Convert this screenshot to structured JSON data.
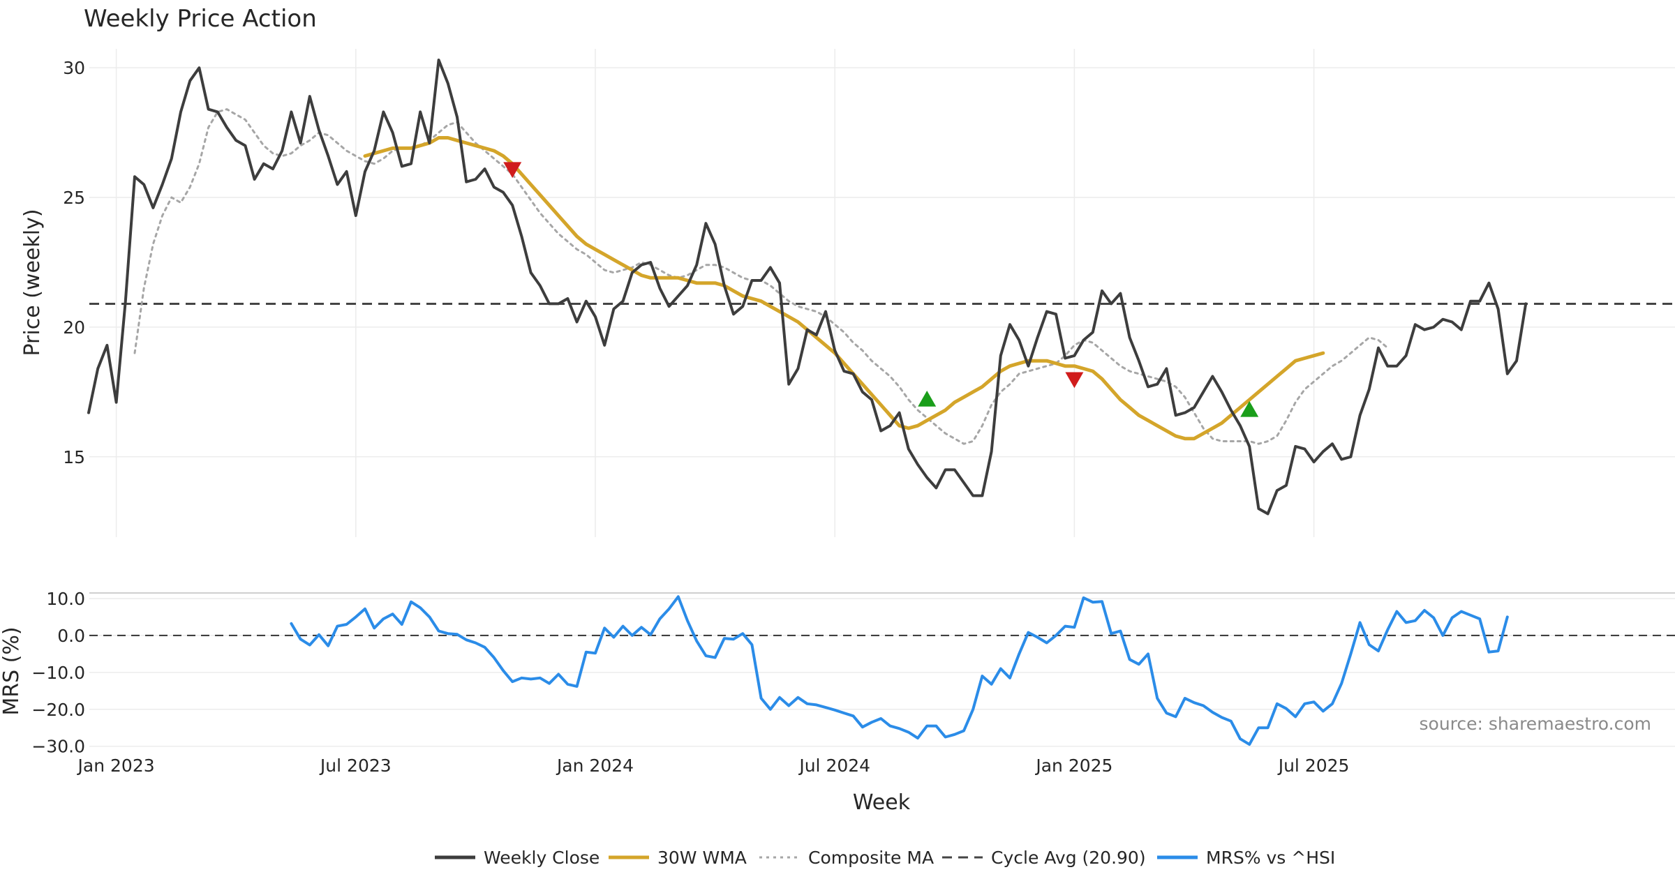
{
  "chart_data": {
    "type": "line",
    "title": "Weekly Price Action",
    "source": "source: sharemaestro.com",
    "xlabel": "Week",
    "x_ticks": [
      "Jan 2023",
      "Jul 2023",
      "Jan 2024",
      "Jul 2024",
      "Jan 2025",
      "Jul 2025"
    ],
    "price_panel": {
      "ylabel": "Price (weekly)",
      "ylim": [
        11.9,
        31.0
      ],
      "y_ticks": [
        "15",
        "20",
        "25",
        "30"
      ],
      "cycle_avg": 20.9,
      "weekly_close": [
        16.7,
        18.4,
        19.3,
        17.1,
        21.0,
        25.8,
        25.5,
        24.6,
        25.5,
        26.5,
        28.3,
        29.5,
        30.0,
        28.4,
        28.3,
        27.7,
        27.2,
        27.0,
        25.7,
        26.3,
        26.1,
        26.8,
        28.3,
        27.1,
        28.9,
        27.6,
        26.6,
        25.5,
        26.0,
        24.3,
        26.0,
        26.8,
        28.3,
        27.5,
        26.2,
        26.3,
        28.3,
        27.1,
        30.3,
        29.4,
        28.1,
        25.6,
        25.7,
        26.1,
        25.4,
        25.2,
        24.7,
        23.5,
        22.1,
        21.6,
        20.9,
        20.9,
        21.1,
        20.2,
        21.0,
        20.4,
        19.3,
        20.7,
        21.0,
        22.1,
        22.4,
        22.5,
        21.5,
        20.8,
        21.2,
        21.6,
        22.4,
        24.0,
        23.2,
        21.6,
        20.5,
        20.8,
        21.8,
        21.8,
        22.3,
        21.7,
        17.8,
        18.4,
        19.9,
        19.7,
        20.6,
        19.1,
        18.3,
        18.2,
        17.5,
        17.2,
        16.0,
        16.2,
        16.7,
        15.3,
        14.7,
        14.2,
        13.8,
        14.5,
        14.5,
        14.0,
        13.5,
        13.5,
        15.2,
        18.9,
        20.1,
        19.5,
        18.5,
        19.6,
        20.6,
        20.5,
        18.8,
        18.9,
        19.5,
        19.8,
        21.4,
        20.9,
        21.3,
        19.6,
        18.7,
        17.7,
        17.8,
        18.4,
        16.6,
        16.7,
        16.9,
        17.5,
        18.1,
        17.5,
        16.8,
        16.2,
        15.4,
        13.0,
        12.8,
        13.7,
        13.9,
        15.4,
        15.3,
        14.8,
        15.2,
        15.5,
        14.9,
        15.0,
        16.6,
        17.6,
        19.2,
        18.5,
        18.5,
        18.9,
        20.1,
        19.9,
        20.0,
        20.3,
        20.2,
        19.9,
        21.0,
        21.0,
        21.7,
        20.7,
        18.2,
        18.7,
        20.9
      ],
      "wma_30w": [
        null,
        null,
        null,
        null,
        null,
        null,
        null,
        null,
        null,
        null,
        null,
        null,
        null,
        null,
        null,
        null,
        null,
        null,
        null,
        null,
        null,
        null,
        null,
        null,
        null,
        null,
        null,
        null,
        null,
        null,
        26.6,
        26.7,
        26.8,
        26.9,
        26.9,
        26.9,
        27.0,
        27.1,
        27.3,
        27.3,
        27.2,
        27.1,
        27.0,
        26.9,
        26.8,
        26.6,
        26.3,
        25.9,
        25.5,
        25.1,
        24.7,
        24.3,
        23.9,
        23.5,
        23.2,
        23.0,
        22.8,
        22.6,
        22.4,
        22.2,
        22.0,
        21.9,
        21.9,
        21.9,
        21.9,
        21.8,
        21.7,
        21.7,
        21.7,
        21.6,
        21.4,
        21.2,
        21.1,
        21.0,
        20.8,
        20.6,
        20.4,
        20.2,
        19.9,
        19.6,
        19.3,
        19.0,
        18.6,
        18.2,
        17.8,
        17.4,
        17.0,
        16.6,
        16.2,
        16.1,
        16.2,
        16.4,
        16.6,
        16.8,
        17.1,
        17.3,
        17.5,
        17.7,
        18.0,
        18.3,
        18.5,
        18.6,
        18.7,
        18.7,
        18.7,
        18.6,
        18.5,
        18.5,
        18.4,
        18.3,
        18.0,
        17.6,
        17.2,
        16.9,
        16.6,
        16.4,
        16.2,
        16.0,
        15.8,
        15.7,
        15.7,
        15.9,
        16.1,
        16.3,
        16.6,
        16.9,
        17.2,
        17.5,
        17.8,
        18.1,
        18.4,
        18.7,
        18.8,
        18.9,
        19.0
      ],
      "wma_x_start": 30,
      "composite_ma": [
        null,
        null,
        null,
        null,
        null,
        19.0,
        21.5,
        23.2,
        24.3,
        25.0,
        24.8,
        25.4,
        26.3,
        27.7,
        28.3,
        28.4,
        28.2,
        28.0,
        27.5,
        27.0,
        26.7,
        26.6,
        26.7,
        27.0,
        27.2,
        27.5,
        27.4,
        27.1,
        26.8,
        26.6,
        26.4,
        26.3,
        26.5,
        26.8,
        26.9,
        26.9,
        27.0,
        27.2,
        27.5,
        27.8,
        27.9,
        27.5,
        27.1,
        26.8,
        26.5,
        26.2,
        25.9,
        25.4,
        24.9,
        24.4,
        24.0,
        23.6,
        23.3,
        23.0,
        22.8,
        22.5,
        22.2,
        22.1,
        22.2,
        22.3,
        22.5,
        22.4,
        22.2,
        22.0,
        21.9,
        22.0,
        22.2,
        22.4,
        22.4,
        22.3,
        22.1,
        21.9,
        21.8,
        21.8,
        21.6,
        21.3,
        21.0,
        20.8,
        20.7,
        20.6,
        20.4,
        20.1,
        19.8,
        19.4,
        19.1,
        18.7,
        18.4,
        18.1,
        17.7,
        17.2,
        16.8,
        16.5,
        16.2,
        15.9,
        15.7,
        15.5,
        15.6,
        16.2,
        17.0,
        17.5,
        17.8,
        18.2,
        18.3,
        18.4,
        18.5,
        18.6,
        18.9,
        19.3,
        19.5,
        19.4,
        19.1,
        18.8,
        18.5,
        18.3,
        18.2,
        18.1,
        18.0,
        17.9,
        17.7,
        17.3,
        16.7,
        16.1,
        15.7,
        15.6,
        15.6,
        15.6,
        15.6,
        15.5,
        15.6,
        15.8,
        16.4,
        17.1,
        17.6,
        17.9,
        18.2,
        18.5,
        18.7,
        19.0,
        19.3,
        19.6,
        19.5,
        19.2
      ],
      "composite_x_start": 0,
      "markers": [
        {
          "type": "sell",
          "x": 46,
          "y": 26.1
        },
        {
          "type": "buy",
          "x": 91,
          "y": 17.2
        },
        {
          "type": "sell",
          "x": 107,
          "y": 18.0
        },
        {
          "type": "buy",
          "x": 126,
          "y": 16.8
        }
      ]
    },
    "mrs_panel": {
      "ylabel": "MRS (%)",
      "ylim": [
        -31,
        11.5
      ],
      "y_ticks": [
        "10.0",
        "0.0",
        "−10.0",
        "−20.0",
        "−30.0"
      ],
      "mrs": [
        3.2,
        -1.0,
        -2.6,
        0.2,
        -2.8,
        2.5,
        3.0,
        5.0,
        7.2,
        2.0,
        4.5,
        5.8,
        3.0,
        9.1,
        7.5,
        5.0,
        1.2,
        0.5,
        0.3,
        -1.2,
        -2.0,
        -3.2,
        -6.0,
        -9.5,
        -12.5,
        -11.5,
        -11.8,
        -11.5,
        -13.0,
        -10.5,
        -13.2,
        -13.8,
        -4.5,
        -4.8,
        2.0,
        -0.5,
        2.5,
        0.0,
        2.2,
        0.2,
        4.5,
        7.2,
        10.5,
        4.0,
        -1.5,
        -5.5,
        -6.0,
        -0.8,
        -1.0,
        0.5,
        -2.5,
        -17.0,
        -20.0,
        -16.8,
        -19.0,
        -16.8,
        -18.5,
        -18.8,
        -19.5,
        -20.2,
        -21.0,
        -21.8,
        -24.8,
        -23.5,
        -22.5,
        -24.5,
        -25.2,
        -26.2,
        -27.8,
        -24.5,
        -24.5,
        -27.5,
        -26.8,
        -25.8,
        -20.0,
        -11.0,
        -13.2,
        -9.0,
        -11.5,
        -5.0,
        0.8,
        -0.5,
        -2.0,
        0.0,
        2.5,
        2.2,
        10.2,
        9.0,
        9.2,
        0.5,
        1.2,
        -6.5,
        -7.8,
        -5.0,
        -17.0,
        -21.0,
        -22.0,
        -17.0,
        -18.2,
        -19.0,
        -20.8,
        -22.2,
        -23.2,
        -28.0,
        -29.5,
        -25.0,
        -25.0,
        -18.5,
        -19.8,
        -22.0,
        -18.5,
        -18.0,
        -20.5,
        -18.5,
        -13.0,
        -5.0,
        3.5,
        -2.5,
        -4.2,
        1.5,
        6.5,
        3.5,
        4.0,
        6.8,
        4.8,
        0.0,
        4.8,
        6.5,
        5.5,
        4.5,
        -4.5,
        -4.2,
        5.0
      ],
      "mrs_x_start": 22
    },
    "legend": [
      {
        "label": "Weekly Close",
        "color": "#3d3d3d",
        "style": "solid"
      },
      {
        "label": "30W WMA",
        "color": "#d4a52a",
        "style": "solid"
      },
      {
        "label": "Composite MA",
        "color": "#a6a6a6",
        "style": "dotted"
      },
      {
        "label": "Cycle Avg (20.90)",
        "color": "#444444",
        "style": "dashed"
      },
      {
        "label": "MRS% vs ^HSI",
        "color": "#2b8ce8",
        "style": "solid"
      }
    ],
    "colors": {
      "close": "#3d3d3d",
      "wma": "#d4a52a",
      "composite": "#a6a6a6",
      "cycle": "#444444",
      "mrs": "#2b8ce8",
      "buy": "#1a9e1a",
      "sell": "#d01c1c",
      "grid": "#ececec"
    }
  }
}
